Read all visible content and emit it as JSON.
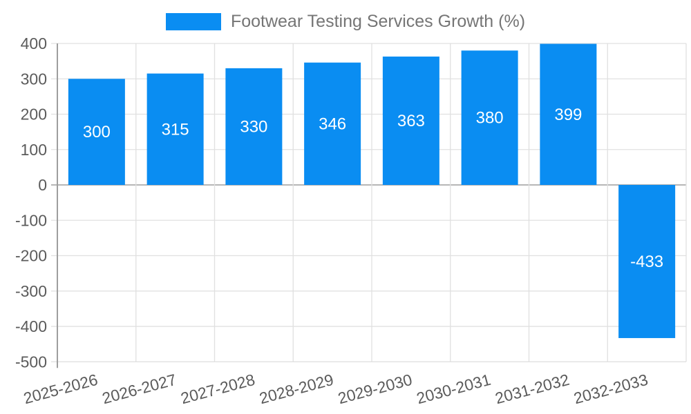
{
  "legend": {
    "label": "Footwear Testing Services Growth (%)"
  },
  "colors": {
    "bar": "#0a8df2",
    "bar_label": "#ffffff",
    "gridline": "#e0e0e0",
    "zero_line": "#b6b6b6",
    "axis_line": "#9e9e9e",
    "tick_text": "#5b5b5b",
    "title_text": "#757575",
    "background": "#ffffff"
  },
  "chart_data": {
    "type": "bar",
    "title": "Footwear Testing Services Growth (%)",
    "categories": [
      "2025-2026",
      "2026-2027",
      "2027-2028",
      "2028-2029",
      "2029-2030",
      "2030-2031",
      "2031-2032",
      "2032-2033"
    ],
    "values": [
      300,
      315,
      330,
      346,
      363,
      380,
      399,
      -433
    ],
    "series": [
      {
        "name": "Footwear Testing Services Growth (%)",
        "values": [
          300,
          315,
          330,
          346,
          363,
          380,
          399,
          -433
        ]
      }
    ],
    "xlabel": "",
    "ylabel": "",
    "ylim": [
      -500,
      400
    ],
    "ytick_step": 100,
    "yticks": [
      400,
      300,
      200,
      100,
      0,
      -100,
      -200,
      -300,
      -400,
      -500
    ],
    "grid": true,
    "vertical_grid": true,
    "legend_position": "top",
    "x_label_rotation_deg": -15,
    "bar_value_labels_inside": true
  }
}
